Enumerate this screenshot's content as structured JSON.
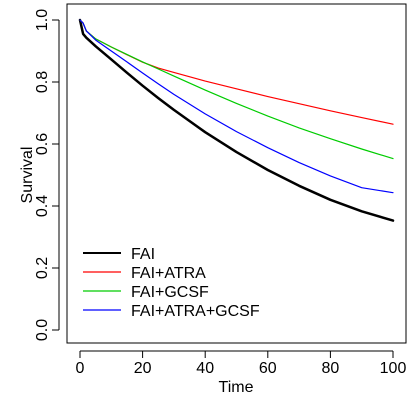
{
  "chart_data": {
    "type": "line",
    "title": "",
    "xlabel": "Time",
    "ylabel": "Survival",
    "xlim": [
      0,
      100
    ],
    "ylim": [
      0,
      1
    ],
    "xticks": [
      0,
      20,
      40,
      60,
      80,
      100
    ],
    "yticks": [
      0.0,
      0.2,
      0.4,
      0.6,
      0.8,
      1.0
    ],
    "xtick_labels": [
      "0",
      "20",
      "40",
      "60",
      "80",
      "100"
    ],
    "ytick_labels": [
      "0.0",
      "0.2",
      "0.4",
      "0.6",
      "0.8",
      "1.0"
    ],
    "grid": false,
    "legend_position": "bottom-left",
    "x": [
      0,
      1,
      2,
      5,
      10,
      15,
      20,
      25,
      30,
      40,
      50,
      60,
      70,
      80,
      90,
      100
    ],
    "series": [
      {
        "name": "FAI",
        "color": "#000000",
        "values": [
          1.0,
          0.955,
          0.943,
          0.915,
          0.873,
          0.83,
          0.788,
          0.748,
          0.71,
          0.638,
          0.574,
          0.516,
          0.465,
          0.42,
          0.383,
          0.353
        ]
      },
      {
        "name": "FAI+ATRA",
        "color": "#ff0000",
        "values": [
          1.0,
          0.99,
          0.965,
          0.939,
          0.913,
          0.888,
          0.864,
          0.845,
          0.831,
          0.803,
          0.778,
          0.753,
          0.73,
          0.707,
          0.685,
          0.664
        ]
      },
      {
        "name": "FAI+GCSF",
        "color": "#00cc00",
        "values": [
          1.0,
          0.99,
          0.965,
          0.939,
          0.913,
          0.889,
          0.865,
          0.842,
          0.819,
          0.774,
          0.731,
          0.69,
          0.652,
          0.617,
          0.584,
          0.553
        ]
      },
      {
        "name": "FAI+ATRA+GCSF",
        "color": "#0000ff",
        "values": [
          1.0,
          0.99,
          0.965,
          0.935,
          0.9,
          0.865,
          0.829,
          0.794,
          0.76,
          0.697,
          0.64,
          0.588,
          0.54,
          0.497,
          0.459,
          0.443
        ]
      }
    ]
  }
}
